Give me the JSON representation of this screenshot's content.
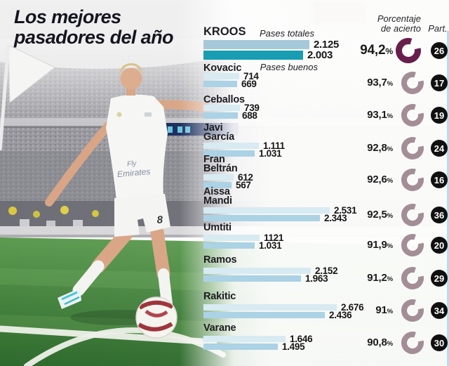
{
  "title": {
    "line1": "Los mejores",
    "line2": "pasadores del año"
  },
  "column_headers": {
    "accuracy_line1": "Porcentaje",
    "accuracy_line2": "de acierto",
    "participation": "Part."
  },
  "bar_legend": {
    "totals": "Pases totales",
    "good": "Pases buenos"
  },
  "labels": {
    "percent_suffix": "%"
  },
  "photo": {
    "jersey_sponsor_line1": "Fly",
    "jersey_sponsor_line2": "Emirates",
    "shorts_number": "8"
  },
  "colors": {
    "bar_total": "#d8eaf2",
    "bar_good": "#abd2e5",
    "bar_total_highlight": "#a6c9d9",
    "bar_good_highlight": "#189db3",
    "donut": "#a38d96",
    "donut_highlight": "#671e4d",
    "badge_bg": "#101010",
    "badge_text": "#ffffff",
    "title_text": "#15151f",
    "pitch_green": "#4f8f47"
  },
  "chart_data": {
    "type": "bar",
    "orientation": "horizontal",
    "series_labels": [
      "Pases totales",
      "Pases buenos"
    ],
    "x_max": 2676,
    "players": [
      {
        "name": "KROOS",
        "passes_total": 2125,
        "passes_good": 2003,
        "total_label": "2.125",
        "good_label": "2.003",
        "accuracy_label": "94,2",
        "accuracy_pct": 94.2,
        "matches": 26,
        "highlight": true
      },
      {
        "name": "Kovacic",
        "passes_total": 714,
        "passes_good": 669,
        "total_label": "714",
        "good_label": "669",
        "accuracy_label": "93,7",
        "accuracy_pct": 93.7,
        "matches": 17,
        "highlight": false
      },
      {
        "name": "Ceballos",
        "passes_total": 739,
        "passes_good": 688,
        "total_label": "739",
        "good_label": "688",
        "accuracy_label": "93,1",
        "accuracy_pct": 93.1,
        "matches": 19,
        "highlight": false
      },
      {
        "name": "Javi\nGarcía",
        "passes_total": 1111,
        "passes_good": 1031,
        "total_label": "1.111",
        "good_label": "1.031",
        "accuracy_label": "92,8",
        "accuracy_pct": 92.8,
        "matches": 24,
        "highlight": false
      },
      {
        "name": "Fran\nBeltrán",
        "passes_total": 612,
        "passes_good": 567,
        "total_label": "612",
        "good_label": "567",
        "accuracy_label": "92,6",
        "accuracy_pct": 92.6,
        "matches": 16,
        "highlight": false
      },
      {
        "name": "Aissa\nMandi",
        "passes_total": 2531,
        "passes_good": 2343,
        "total_label": "2.531",
        "good_label": "2.343",
        "accuracy_label": "92,5",
        "accuracy_pct": 92.5,
        "matches": 36,
        "highlight": false
      },
      {
        "name": "Umtiti",
        "passes_total": 1121,
        "passes_good": 1031,
        "total_label": "1121",
        "good_label": "1.031",
        "accuracy_label": "91,9",
        "accuracy_pct": 91.9,
        "matches": 20,
        "highlight": false
      },
      {
        "name": "Ramos",
        "passes_total": 2152,
        "passes_good": 1963,
        "total_label": "2.152",
        "good_label": "1.963",
        "accuracy_label": "91,2",
        "accuracy_pct": 91.2,
        "matches": 29,
        "highlight": false
      },
      {
        "name": "Rakitic",
        "passes_total": 2676,
        "passes_good": 2436,
        "total_label": "2.676",
        "good_label": "2.436",
        "accuracy_label": "91",
        "accuracy_pct": 91.0,
        "matches": 34,
        "highlight": false
      },
      {
        "name": "Varane",
        "passes_total": 1646,
        "passes_good": 1495,
        "total_label": "1.646",
        "good_label": "1.495",
        "accuracy_label": "90,8",
        "accuracy_pct": 90.8,
        "matches": 30,
        "highlight": false
      }
    ]
  }
}
